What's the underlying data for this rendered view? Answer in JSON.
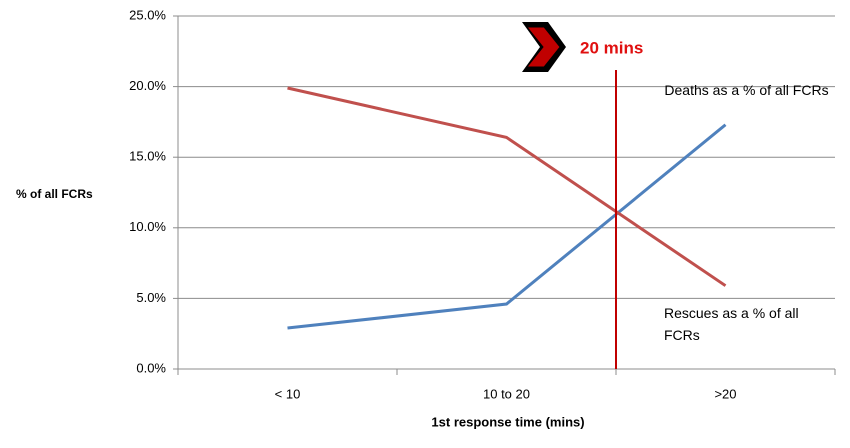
{
  "chart_data": {
    "type": "line",
    "categories": [
      "< 10",
      "10 to 20",
      ">20"
    ],
    "series": [
      {
        "name": "Deaths as a % of all FCRs",
        "color": "#4f81bd",
        "values": [
          2.9,
          4.6,
          17.3
        ]
      },
      {
        "name": "Rescues as a % of all FCRs",
        "color": "#c0504d",
        "values": [
          19.9,
          16.4,
          5.9
        ]
      }
    ],
    "ylim": [
      0,
      25
    ],
    "yticks": [
      {
        "value": 0,
        "label": "0.0%"
      },
      {
        "value": 5,
        "label": "5.0%"
      },
      {
        "value": 10,
        "label": "10.0%"
      },
      {
        "value": 15,
        "label": "15.0%"
      },
      {
        "value": 20,
        "label": "20.0%"
      },
      {
        "value": 25,
        "label": "25.0%"
      }
    ],
    "y_label": "% of all FCRs",
    "x_label": "1st response time (mins)",
    "annotation": "20 mins",
    "grid": true
  }
}
